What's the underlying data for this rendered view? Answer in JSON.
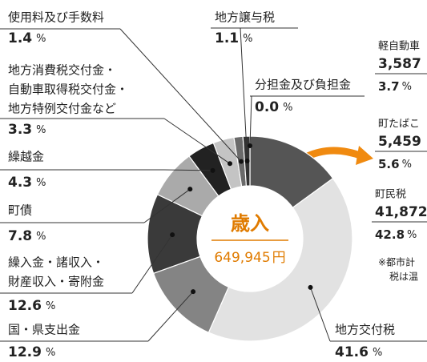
{
  "chart_data": {
    "type": "pie",
    "center_title": "歳入",
    "total": "649,945",
    "total_unit": "円",
    "unit": "%",
    "categories": [
      null,
      "地方交付税",
      "国・県支出金",
      [
        "繰入金・諸収入・",
        "財産収入・寄附金"
      ],
      "町債",
      "繰越金",
      [
        "地方消費税交付金・",
        "自動車取得税交付金・",
        "地方特例交付金など"
      ],
      "使用料及び手数料",
      "地方譲与税",
      "分担金及び負担金"
    ],
    "values": [
      15.0,
      41.6,
      12.9,
      12.6,
      7.8,
      4.3,
      3.3,
      1.4,
      1.1,
      0.0
    ],
    "value_labels": [
      null,
      "41.6",
      "12.9",
      "12.6",
      "7.8",
      "4.3",
      "3.3",
      "1.4",
      "1.1",
      "0.0"
    ],
    "colors": [
      "#555555",
      "#e2e2e2",
      "#848484",
      "#3a3a3a",
      "#aaaaaa",
      "#222222",
      "#c4c4c4",
      "#6a6a6a",
      "#333333",
      "#444444"
    ],
    "breakdown": [
      {
        "name": "軽自動車",
        "amount": "3,587",
        "share": "3.7"
      },
      {
        "name": "町たばこ",
        "amount": "5,459",
        "share": "5.6"
      },
      {
        "name": "町民税",
        "amount": "41,872",
        "share": "42.8"
      }
    ],
    "note": [
      "※都市計",
      "税は温"
    ]
  }
}
